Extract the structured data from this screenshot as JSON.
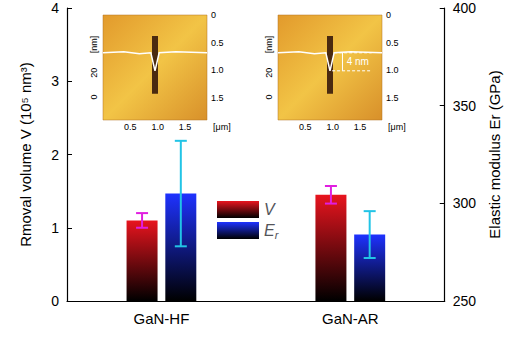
{
  "chart_data": {
    "type": "bar",
    "categories": [
      "GaN-HF",
      "GaN-AR"
    ],
    "ylabel": "Rmoval volume V (10⁵ nm³)",
    "y2label": "Elastic modulus Er (GPa)",
    "ylim": [
      0,
      4
    ],
    "yticks": [
      0,
      1,
      2,
      3,
      4
    ],
    "y2lim": [
      250,
      400
    ],
    "y2ticks": [
      250,
      300,
      350,
      400
    ],
    "legend": "center",
    "series": [
      {
        "name": "V",
        "color": "#e8141e",
        "values": [
          1.1,
          1.45
        ],
        "errors": [
          0.1,
          0.12
        ]
      },
      {
        "name": "Er",
        "color": "#1e32ff",
        "values": [
          305,
          284
        ],
        "errors": [
          27,
          12
        ],
        "axis": "y2"
      }
    ],
    "insets": [
      {
        "xlim": [
          0,
          1.9
        ],
        "ylim": [
          0,
          1.9
        ],
        "xticks": [
          0.5,
          {
            "value": 1,
            "label": "1.0"
          },
          1.5
        ],
        "yticks": [
          0,
          0.5,
          {
            "value": 1,
            "label": "1.0"
          },
          1.5
        ],
        "xlabel": "[μm]",
        "profile_ticks": [
          0,
          20
        ],
        "profile_label": "[nm]"
      },
      {
        "xlim": [
          0,
          1.9
        ],
        "ylim": [
          0,
          1.9
        ],
        "xticks": [
          0.5,
          {
            "value": 1,
            "label": "1.0"
          },
          1.5
        ],
        "yticks": [
          0,
          0.5,
          {
            "value": 1,
            "label": "1.0"
          },
          1.5
        ],
        "xlabel": "[μm]",
        "profile_ticks": [
          0,
          20
        ],
        "profile_label": "[nm]",
        "annotation": "4 nm"
      }
    ]
  }
}
